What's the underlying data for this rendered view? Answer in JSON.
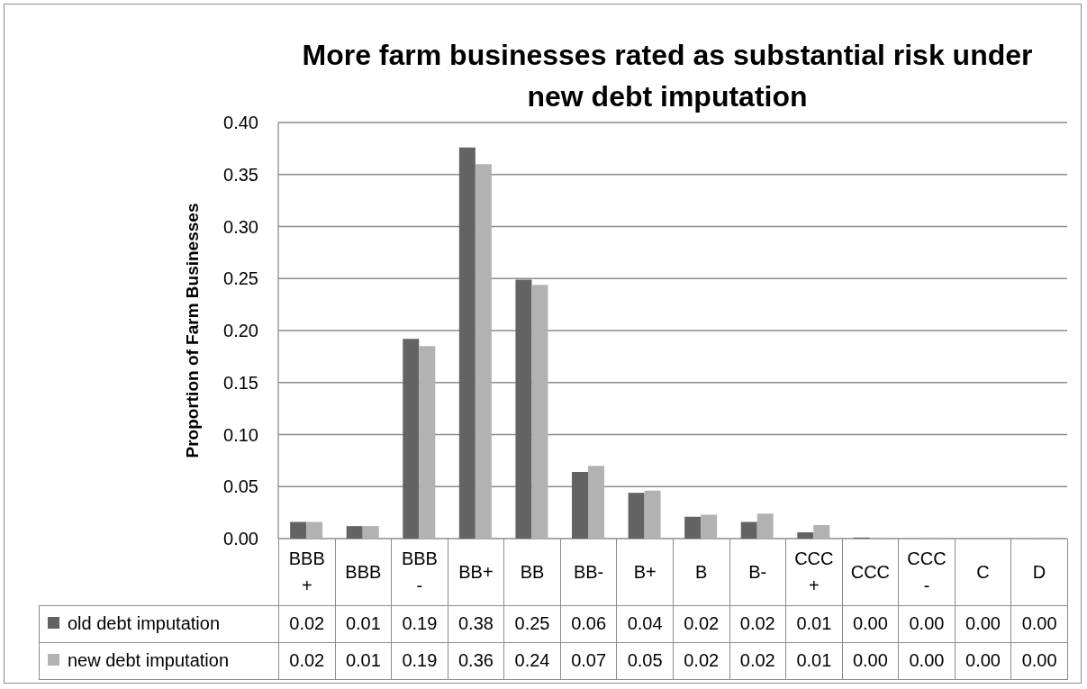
{
  "chart_data": {
    "type": "bar",
    "title": "More farm businesses rated as substantial risk under new debt imputation",
    "ylabel": "Proportion of Farm Businesses",
    "categories": [
      "BBB+",
      "BBB",
      "BBB-",
      "BB+",
      "BB",
      "BB-",
      "B+",
      "B",
      "B-",
      "CCC+",
      "CCC",
      "CCC-",
      "C",
      "D"
    ],
    "series": [
      {
        "name": "old debt imputation",
        "color": "#636363",
        "values": [
          0.016,
          0.012,
          0.192,
          0.376,
          0.249,
          0.064,
          0.044,
          0.021,
          0.016,
          0.006,
          0.001,
          0,
          0,
          0
        ],
        "value_labels": [
          "0.02",
          "0.01",
          "0.19",
          "0.38",
          "0.25",
          "0.06",
          "0.04",
          "0.02",
          "0.02",
          "0.01",
          "0.00",
          "0.00",
          "0.00",
          "0.00"
        ]
      },
      {
        "name": "new debt imputation",
        "color": "#b2b2b2",
        "values": [
          0.016,
          0.012,
          0.185,
          0.36,
          0.244,
          0.07,
          0.046,
          0.023,
          0.024,
          0.013,
          0.001,
          0.001,
          0,
          0.001
        ],
        "value_labels": [
          "0.02",
          "0.01",
          "0.19",
          "0.36",
          "0.24",
          "0.07",
          "0.05",
          "0.02",
          "0.02",
          "0.01",
          "0.00",
          "0.00",
          "0.00",
          "0.00"
        ]
      }
    ],
    "ylim": [
      0,
      0.4
    ],
    "yticks": [
      {
        "value": 0,
        "label": "0.00"
      },
      {
        "value": 0.05,
        "label": "0.05"
      },
      {
        "value": 0.1,
        "label": "0.10"
      },
      {
        "value": 0.15,
        "label": "0.15"
      },
      {
        "value": 0.2,
        "label": "0.20"
      },
      {
        "value": 0.25,
        "label": "0.25"
      },
      {
        "value": 0.3,
        "label": "0.30"
      },
      {
        "value": 0.35,
        "label": "0.35"
      },
      {
        "value": 0.4,
        "label": "0.40"
      }
    ],
    "grid": "y",
    "legend": "bottom"
  }
}
